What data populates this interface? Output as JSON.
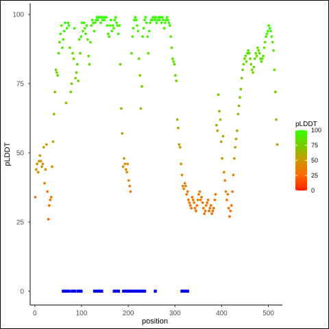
{
  "chart_data": {
    "type": "scatter",
    "title": "",
    "xlabel": "position",
    "ylabel": "pLDDT",
    "xlim": [
      -10,
      530
    ],
    "ylim": [
      -5,
      104
    ],
    "x_ticks": [
      0,
      100,
      200,
      300,
      400,
      500
    ],
    "y_ticks": [
      0,
      25,
      50,
      75,
      100
    ],
    "grid": false,
    "legend": {
      "title": "pLDDT",
      "position": "right",
      "ticks": [
        0,
        25,
        50,
        75,
        100
      ],
      "range": [
        0,
        100
      ],
      "colors": [
        "#ff2200",
        "#ff6600",
        "#cc9900",
        "#77cc00",
        "#33ff00"
      ]
    },
    "series": [
      {
        "kind": "plddt",
        "values": [
          [
            1,
            34
          ],
          [
            3,
            44
          ],
          [
            5,
            46
          ],
          [
            7,
            43
          ],
          [
            9,
            47
          ],
          [
            11,
            49
          ],
          [
            13,
            47
          ],
          [
            15,
            45
          ],
          [
            17,
            46
          ],
          [
            19,
            52
          ],
          [
            21,
            39
          ],
          [
            23,
            44
          ],
          [
            25,
            53
          ],
          [
            27,
            36
          ],
          [
            29,
            26
          ],
          [
            31,
            31
          ],
          [
            33,
            33
          ],
          [
            35,
            34
          ],
          [
            37,
            45
          ],
          [
            39,
            54
          ],
          [
            41,
            64
          ],
          [
            43,
            72
          ],
          [
            45,
            80
          ],
          [
            47,
            79
          ],
          [
            49,
            78
          ],
          [
            51,
            86
          ],
          [
            53,
            90
          ],
          [
            55,
            93
          ],
          [
            57,
            96
          ],
          [
            59,
            88
          ],
          [
            61,
            91
          ],
          [
            63,
            94
          ],
          [
            65,
            97
          ],
          [
            67,
            68
          ],
          [
            69,
            95
          ],
          [
            71,
            97
          ],
          [
            73,
            96
          ],
          [
            75,
            88
          ],
          [
            77,
            72
          ],
          [
            79,
            75
          ],
          [
            81,
            86
          ],
          [
            83,
            84
          ],
          [
            85,
            95
          ],
          [
            87,
            77
          ],
          [
            89,
            79
          ],
          [
            91,
            82
          ],
          [
            93,
            76
          ],
          [
            95,
            91
          ],
          [
            97,
            86
          ],
          [
            99,
            92
          ],
          [
            101,
            97
          ],
          [
            103,
            94
          ],
          [
            105,
            97
          ],
          [
            107,
            95
          ],
          [
            109,
            93
          ],
          [
            111,
            96
          ],
          [
            113,
            91
          ],
          [
            115,
            85
          ],
          [
            117,
            82
          ],
          [
            119,
            90
          ],
          [
            121,
            96
          ],
          [
            123,
            98
          ],
          [
            125,
            97
          ],
          [
            127,
            94
          ],
          [
            129,
            97
          ],
          [
            131,
            98
          ],
          [
            133,
            99
          ],
          [
            135,
            98
          ],
          [
            137,
            99
          ],
          [
            139,
            99
          ],
          [
            141,
            97
          ],
          [
            143,
            99
          ],
          [
            145,
            98
          ],
          [
            147,
            99
          ],
          [
            149,
            98
          ],
          [
            151,
            99
          ],
          [
            153,
            99
          ],
          [
            155,
            96
          ],
          [
            157,
            93
          ],
          [
            159,
            92
          ],
          [
            161,
            96
          ],
          [
            163,
            98
          ],
          [
            165,
            94
          ],
          [
            167,
            96
          ],
          [
            169,
            95
          ],
          [
            171,
            98
          ],
          [
            173,
            99
          ],
          [
            175,
            97
          ],
          [
            177,
            96
          ],
          [
            179,
            93
          ],
          [
            181,
            96
          ],
          [
            183,
            82
          ],
          [
            185,
            66
          ],
          [
            187,
            57
          ],
          [
            189,
            45
          ],
          [
            191,
            48
          ],
          [
            193,
            46
          ],
          [
            195,
            44
          ],
          [
            197,
            43
          ],
          [
            199,
            46
          ],
          [
            201,
            40
          ],
          [
            203,
            38
          ],
          [
            205,
            36
          ],
          [
            207,
            86
          ],
          [
            209,
            92
          ],
          [
            211,
            95
          ],
          [
            213,
            98
          ],
          [
            215,
            99
          ],
          [
            217,
            98
          ],
          [
            219,
            96
          ],
          [
            221,
            94
          ],
          [
            223,
            84
          ],
          [
            225,
            78
          ],
          [
            227,
            66
          ],
          [
            229,
            74
          ],
          [
            231,
            92
          ],
          [
            233,
            95
          ],
          [
            235,
            98
          ],
          [
            237,
            99
          ],
          [
            239,
            97
          ],
          [
            241,
            92
          ],
          [
            243,
            86
          ],
          [
            245,
            94
          ],
          [
            247,
            97
          ],
          [
            249,
            98
          ],
          [
            251,
            98
          ],
          [
            253,
            99
          ],
          [
            255,
            99
          ],
          [
            257,
            98
          ],
          [
            259,
            99
          ],
          [
            261,
            97
          ],
          [
            263,
            98
          ],
          [
            265,
            99
          ],
          [
            267,
            98
          ],
          [
            269,
            99
          ],
          [
            271,
            97
          ],
          [
            273,
            99
          ],
          [
            275,
            98
          ],
          [
            277,
            95
          ],
          [
            279,
            97
          ],
          [
            281,
            98
          ],
          [
            283,
            99
          ],
          [
            285,
            98
          ],
          [
            287,
            97
          ],
          [
            289,
            96
          ],
          [
            291,
            92
          ],
          [
            293,
            88
          ],
          [
            295,
            84
          ],
          [
            297,
            83
          ],
          [
            299,
            82
          ],
          [
            301,
            78
          ],
          [
            303,
            76
          ],
          [
            305,
            62
          ],
          [
            307,
            59
          ],
          [
            309,
            53
          ],
          [
            311,
            52
          ],
          [
            313,
            46
          ],
          [
            315,
            42
          ],
          [
            317,
            38
          ],
          [
            319,
            37
          ],
          [
            321,
            39
          ],
          [
            323,
            38
          ],
          [
            325,
            35
          ],
          [
            327,
            36
          ],
          [
            329,
            33
          ],
          [
            331,
            32
          ],
          [
            333,
            31
          ],
          [
            335,
            30
          ],
          [
            337,
            34
          ],
          [
            339,
            33
          ],
          [
            341,
            32
          ],
          [
            343,
            30
          ],
          [
            345,
            29
          ],
          [
            347,
            31
          ],
          [
            349,
            33
          ],
          [
            351,
            35
          ],
          [
            353,
            36
          ],
          [
            355,
            33
          ],
          [
            357,
            34
          ],
          [
            359,
            32
          ],
          [
            361,
            30
          ],
          [
            363,
            28
          ],
          [
            365,
            29
          ],
          [
            367,
            31
          ],
          [
            369,
            32
          ],
          [
            371,
            33
          ],
          [
            373,
            29
          ],
          [
            375,
            30
          ],
          [
            377,
            31
          ],
          [
            379,
            28
          ],
          [
            381,
            29
          ],
          [
            383,
            30
          ],
          [
            385,
            33
          ],
          [
            387,
            35
          ],
          [
            389,
            60
          ],
          [
            391,
            58
          ],
          [
            393,
            71
          ],
          [
            395,
            65
          ],
          [
            397,
            62
          ],
          [
            399,
            54
          ],
          [
            401,
            48
          ],
          [
            403,
            56
          ],
          [
            405,
            43
          ],
          [
            407,
            40
          ],
          [
            409,
            36
          ],
          [
            411,
            33
          ],
          [
            413,
            35
          ],
          [
            415,
            30
          ],
          [
            417,
            27
          ],
          [
            419,
            29
          ],
          [
            421,
            31
          ],
          [
            423,
            36
          ],
          [
            425,
            42
          ],
          [
            427,
            48
          ],
          [
            429,
            52
          ],
          [
            431,
            55
          ],
          [
            433,
            58
          ],
          [
            435,
            64
          ],
          [
            437,
            67
          ],
          [
            439,
            70
          ],
          [
            441,
            73
          ],
          [
            443,
            77
          ],
          [
            445,
            80
          ],
          [
            447,
            82
          ],
          [
            449,
            84
          ],
          [
            451,
            85
          ],
          [
            453,
            83
          ],
          [
            455,
            86
          ],
          [
            457,
            87
          ],
          [
            459,
            86
          ],
          [
            461,
            84
          ],
          [
            463,
            82
          ],
          [
            465,
            80
          ],
          [
            467,
            79
          ],
          [
            469,
            81
          ],
          [
            471,
            84
          ],
          [
            473,
            86
          ],
          [
            475,
            85
          ],
          [
            477,
            88
          ],
          [
            479,
            87
          ],
          [
            481,
            86
          ],
          [
            483,
            84
          ],
          [
            485,
            83
          ],
          [
            487,
            84
          ],
          [
            489,
            85
          ],
          [
            491,
            88
          ],
          [
            493,
            90
          ],
          [
            495,
            92
          ],
          [
            497,
            93
          ],
          [
            499,
            94
          ],
          [
            501,
            96
          ],
          [
            503,
            95
          ],
          [
            505,
            94
          ],
          [
            507,
            92
          ],
          [
            509,
            90
          ],
          [
            511,
            87
          ],
          [
            513,
            80
          ],
          [
            515,
            72
          ],
          [
            517,
            62
          ],
          [
            519,
            53
          ]
        ]
      },
      {
        "kind": "blue",
        "color": "#0000ee",
        "values": [
          [
            61,
            0
          ],
          [
            64,
            0
          ],
          [
            67,
            0
          ],
          [
            70,
            0
          ],
          [
            73,
            0
          ],
          [
            80,
            0
          ],
          [
            83,
            0
          ],
          [
            86,
            0
          ],
          [
            93,
            0
          ],
          [
            96,
            0
          ],
          [
            99,
            0
          ],
          [
            128,
            0
          ],
          [
            131,
            0
          ],
          [
            134,
            0
          ],
          [
            137,
            0
          ],
          [
            140,
            0
          ],
          [
            143,
            0
          ],
          [
            170,
            0
          ],
          [
            173,
            0
          ],
          [
            176,
            0
          ],
          [
            179,
            0
          ],
          [
            190,
            0
          ],
          [
            193,
            0
          ],
          [
            196,
            0
          ],
          [
            199,
            0
          ],
          [
            202,
            0
          ],
          [
            205,
            0
          ],
          [
            208,
            0
          ],
          [
            211,
            0
          ],
          [
            214,
            0
          ],
          [
            217,
            0
          ],
          [
            220,
            0
          ],
          [
            223,
            0
          ],
          [
            226,
            0
          ],
          [
            229,
            0
          ],
          [
            232,
            0
          ],
          [
            235,
            0
          ],
          [
            258,
            0
          ],
          [
            315,
            0
          ],
          [
            318,
            0
          ],
          [
            321,
            0
          ],
          [
            324,
            0
          ],
          [
            327,
            0
          ]
        ]
      }
    ]
  }
}
